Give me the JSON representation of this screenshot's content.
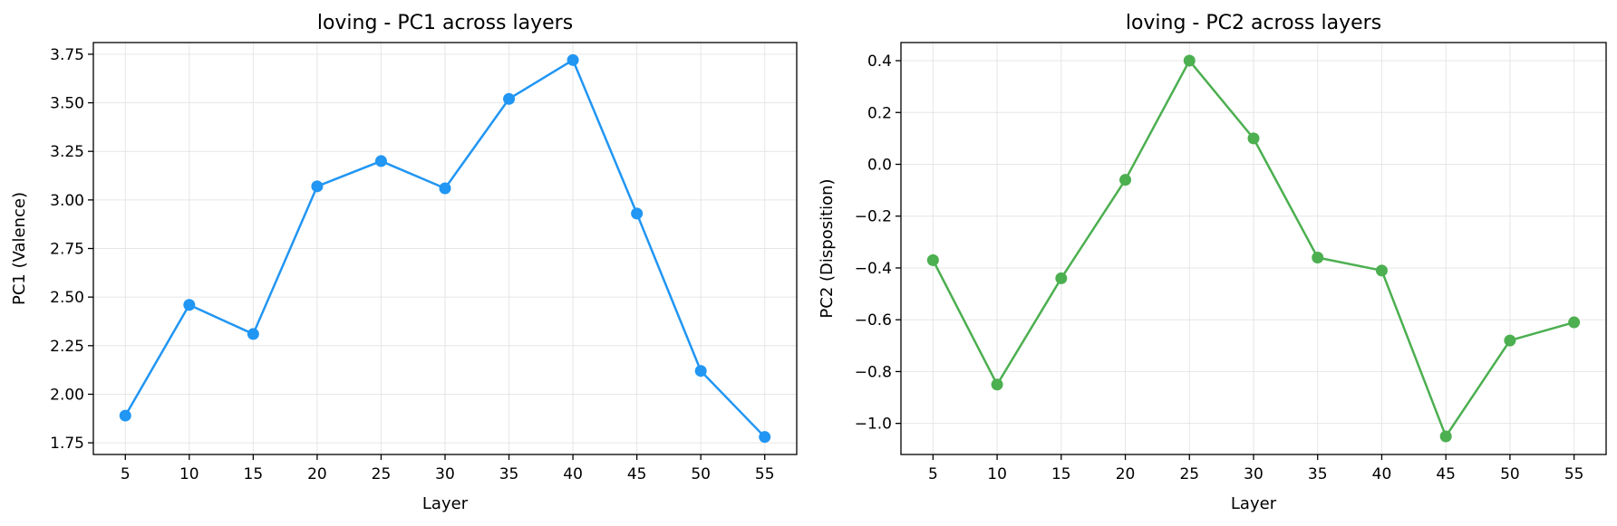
{
  "chart_data": [
    {
      "type": "line",
      "title": "loving - PC1 across layers",
      "xlabel": "Layer",
      "ylabel": "PC1 (Valence)",
      "x": [
        5,
        10,
        15,
        20,
        25,
        30,
        35,
        40,
        45,
        50,
        55
      ],
      "series": [
        {
          "values": [
            1.89,
            2.46,
            2.31,
            3.07,
            3.2,
            3.06,
            3.52,
            3.72,
            2.93,
            2.12,
            1.78
          ],
          "color": "#2196F3"
        }
      ],
      "xticks": [
        5,
        10,
        15,
        20,
        25,
        30,
        35,
        40,
        45,
        50,
        55
      ],
      "yticks": [
        1.75,
        2.0,
        2.25,
        2.5,
        2.75,
        3.0,
        3.25,
        3.5,
        3.75
      ],
      "ytick_labels": [
        "1.75",
        "2.00",
        "2.25",
        "2.50",
        "2.75",
        "3.00",
        "3.25",
        "3.50",
        "3.75"
      ],
      "xlim": [
        2.5,
        57.5
      ],
      "ylim": [
        1.69,
        3.81
      ],
      "grid": true
    },
    {
      "type": "line",
      "title": "loving - PC2 across layers",
      "xlabel": "Layer",
      "ylabel": "PC2 (Disposition)",
      "x": [
        5,
        10,
        15,
        20,
        25,
        30,
        35,
        40,
        45,
        50,
        55
      ],
      "series": [
        {
          "values": [
            -0.37,
            -0.85,
            -0.44,
            -0.06,
            0.4,
            0.1,
            -0.36,
            -0.41,
            -1.05,
            -0.68,
            -0.61
          ],
          "color": "#4CAF50"
        }
      ],
      "xticks": [
        5,
        10,
        15,
        20,
        25,
        30,
        35,
        40,
        45,
        50,
        55
      ],
      "yticks": [
        -1.0,
        -0.8,
        -0.6,
        -0.4,
        -0.2,
        0.0,
        0.2,
        0.4
      ],
      "ytick_labels": [
        "−1.0",
        "−0.8",
        "−0.6",
        "−0.4",
        "−0.2",
        "0.0",
        "0.2",
        "0.4"
      ],
      "xlim": [
        2.5,
        57.5
      ],
      "ylim": [
        -1.12,
        0.47
      ],
      "grid": true
    }
  ]
}
